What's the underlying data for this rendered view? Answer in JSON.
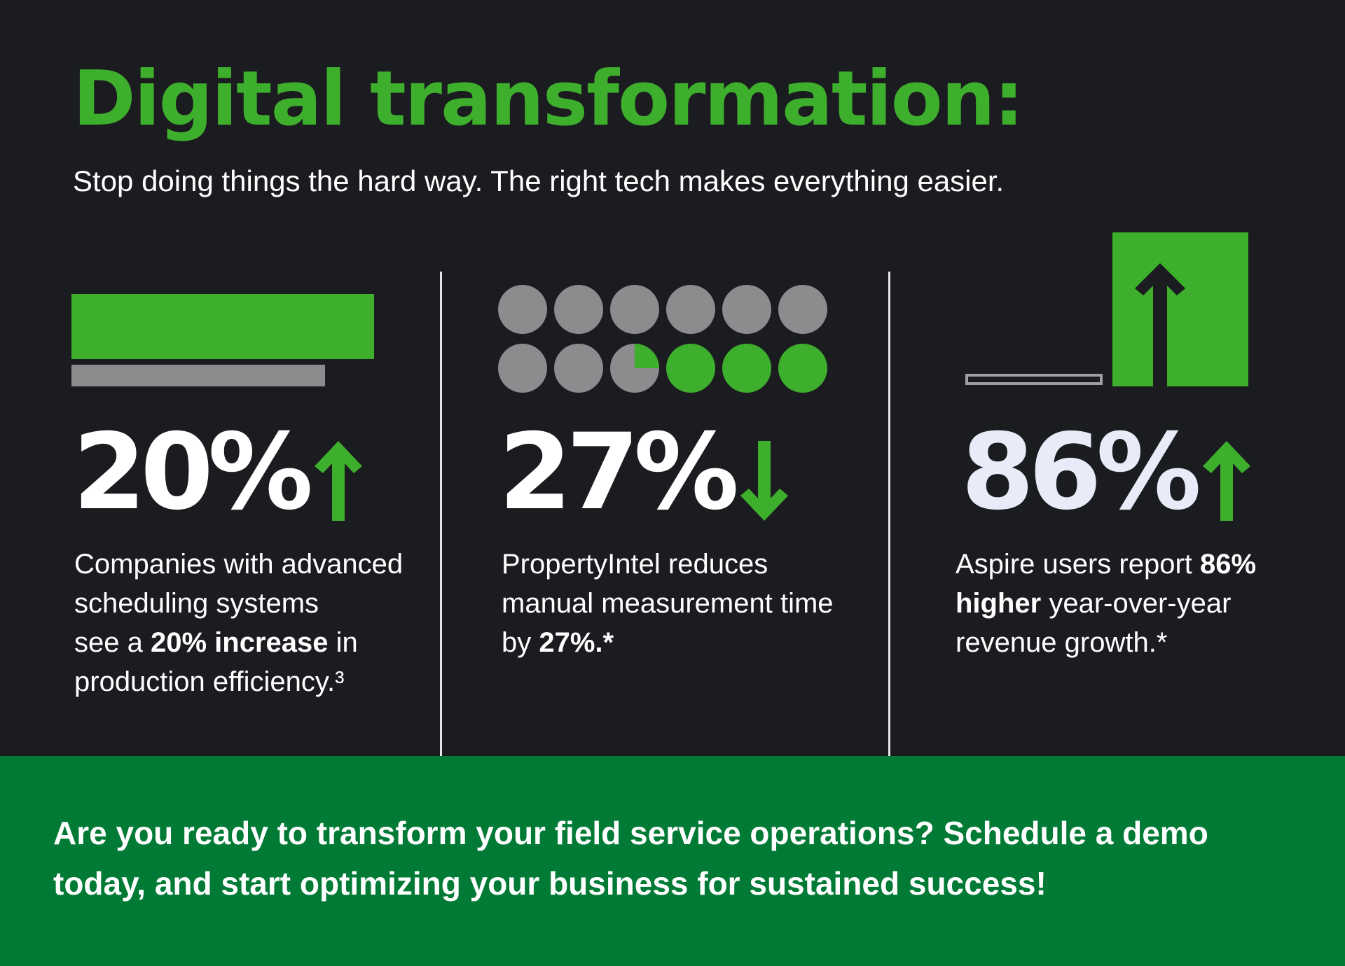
{
  "header": {
    "title": "Digital transformation:",
    "subtitle": "Stop doing things the hard way. The right tech makes everything easier."
  },
  "stats": [
    {
      "value": "20%",
      "direction": "up",
      "desc_1": "Companies with advanced",
      "desc_2": "scheduling systems",
      "desc_3a": "see a ",
      "desc_3b": "20% increase",
      "desc_3c": " in",
      "desc_4": "production efficiency.³"
    },
    {
      "value": "27%",
      "direction": "down",
      "desc_1": "PropertyIntel reduces",
      "desc_2": "manual measurement time",
      "desc_3a": "by ",
      "desc_3b": "27%.",
      "desc_3c": "*"
    },
    {
      "value": "86%",
      "direction": "up",
      "desc_1a": "Aspire users report ",
      "desc_1b": "86%",
      "desc_2a": "higher",
      "desc_2b": " year-over-year",
      "desc_3": "revenue growth.*"
    }
  ],
  "cta": {
    "text": "Are you ready to transform your field service operations? Schedule a demo today, and start optimizing your business for sustained success!"
  },
  "colors": {
    "background": "#1b1c20",
    "accent_green": "#3eaf2c",
    "cta_green": "#007a35",
    "gray": "#8c8c8e"
  }
}
